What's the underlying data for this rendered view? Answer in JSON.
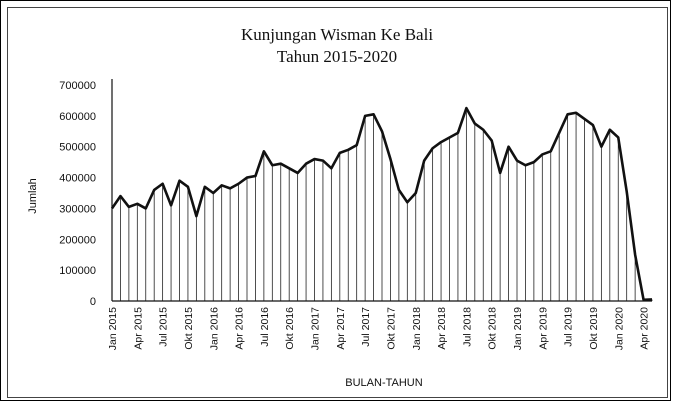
{
  "chart_data": {
    "type": "line",
    "title": "Kunjungan Wisman Ke Bali",
    "subtitle": "Tahun 2015-2020",
    "xlabel": "BULAN-TAHUN",
    "ylabel": "Jumlah",
    "ylim": [
      0,
      700000
    ],
    "yticks": [
      "0",
      "100000",
      "200000",
      "300000",
      "400000",
      "500000",
      "600000",
      "700000"
    ],
    "grid": false,
    "drop_lines": true,
    "xtick_labels": [
      "Jan 2015",
      "Apr 2015",
      "Jul 2015",
      "Okt 2015",
      "Jan 2016",
      "Apr 2016",
      "Jul 2016",
      "Okt 2016",
      "Jan 2017",
      "Apr 2017",
      "Jul 2017",
      "Okt 2017",
      "Jan 2018",
      "Apr 2018",
      "Jul 2018",
      "Okt 2018",
      "Jan 2019",
      "Apr 2019",
      "Jul 2019",
      "Okt 2019",
      "Jan 2020",
      "Apr 2020"
    ],
    "xtick_every": 3,
    "values": [
      300000,
      340000,
      305000,
      315000,
      300000,
      360000,
      380000,
      310000,
      390000,
      370000,
      275000,
      370000,
      350000,
      375000,
      365000,
      380000,
      400000,
      405000,
      485000,
      440000,
      445000,
      430000,
      415000,
      445000,
      460000,
      455000,
      430000,
      480000,
      490000,
      505000,
      600000,
      605000,
      550000,
      460000,
      360000,
      320000,
      350000,
      455000,
      495000,
      515000,
      530000,
      545000,
      625000,
      575000,
      555000,
      520000,
      415000,
      500000,
      455000,
      440000,
      450000,
      475000,
      485000,
      545000,
      605000,
      610000,
      590000,
      570000,
      500000,
      555000,
      530000,
      355000,
      150000,
      4000,
      5000
    ],
    "line_color": "#111111"
  }
}
